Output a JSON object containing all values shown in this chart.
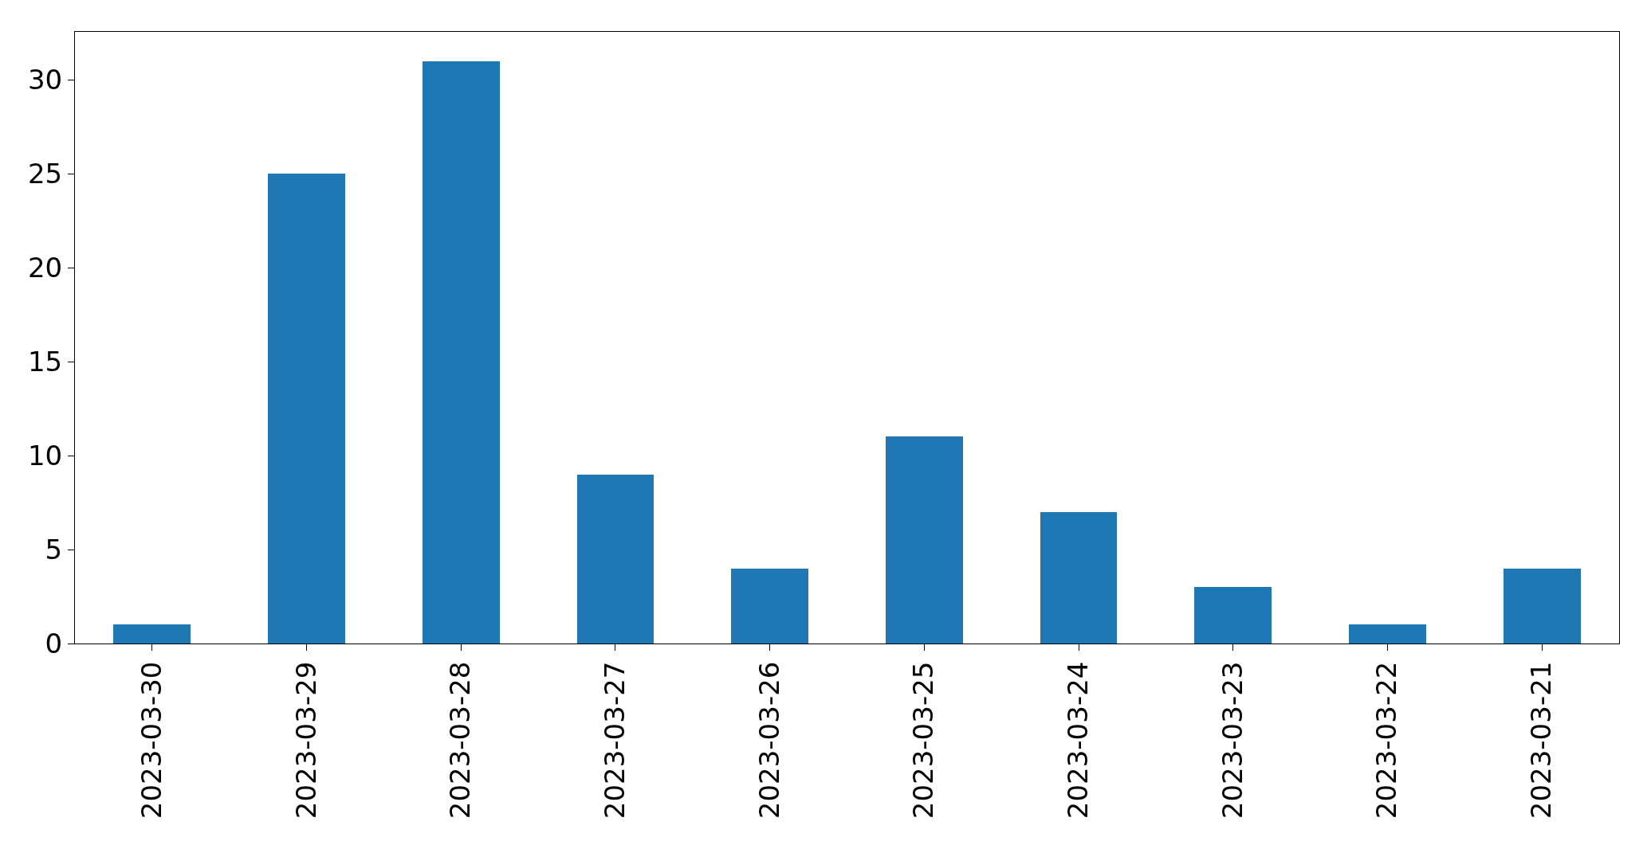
{
  "chart_data": {
    "type": "bar",
    "categories": [
      "2023-03-30",
      "2023-03-29",
      "2023-03-28",
      "2023-03-27",
      "2023-03-26",
      "2023-03-25",
      "2023-03-24",
      "2023-03-23",
      "2023-03-22",
      "2023-03-21"
    ],
    "values": [
      1,
      25,
      31,
      9,
      4,
      11,
      7,
      3,
      1,
      4
    ],
    "color": "#1f77b4",
    "ylim": [
      0,
      32.55
    ],
    "yticks": [
      0,
      5,
      10,
      15,
      20,
      25,
      30
    ]
  }
}
